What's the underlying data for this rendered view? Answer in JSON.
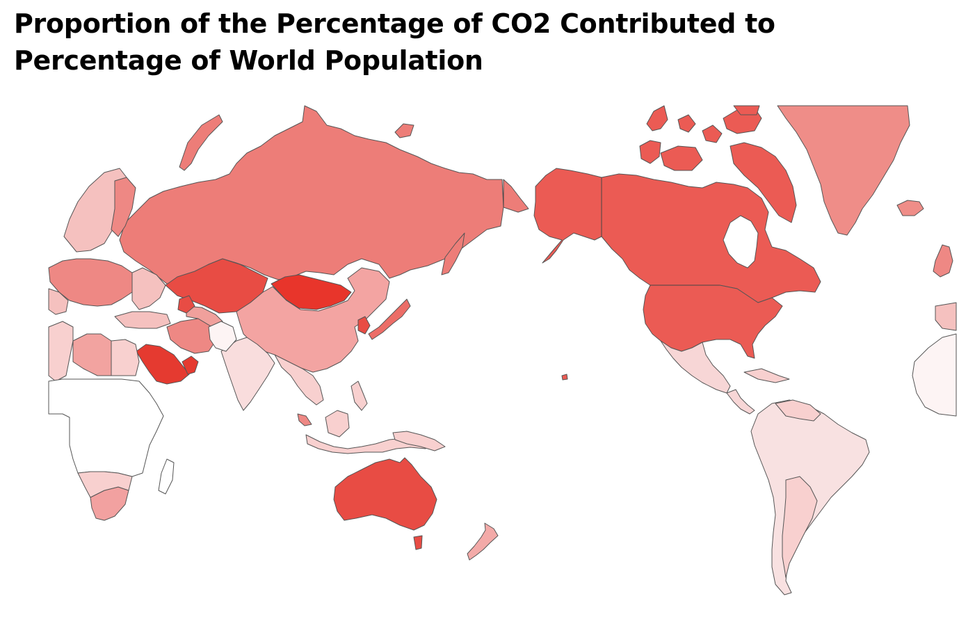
{
  "title": "Proportion of the Percentage of CO2 Contributed to Percentage of World Population",
  "map": {
    "projection": "world map centered on the Pacific",
    "color_scale": {
      "low": "#ffffff",
      "mid": "#f0a0a0",
      "high": "#e8302a"
    },
    "shading_levels": {
      "mongolia": "#e8352b",
      "saudi-arabia-gulf": "#e53a30",
      "kazakhstan": "#e84c44",
      "australia": "#e84c44",
      "usa-canada": "#eb5b54",
      "alaska": "#eb5b54",
      "russia": "#ed7d78",
      "greenland": "#ef8d88",
      "europe-north": "#f5c1bf",
      "china": "#f3a4a2",
      "iran": "#ee8884",
      "libya": "#f2a3a0",
      "south-africa": "#f2a1a0",
      "mexico": "#f7d6d6",
      "south-america": "#f8e1e1",
      "india": "#f9dddd",
      "africa-central": "#ffffff",
      "southeast-asia": "#f8d0cf",
      "new-zealand": "#f3aaa8",
      "japan": "#ec6d67",
      "turkmenistan-uzbekistan": "#f0a09c",
      "west-africa": "#fdf4f4"
    }
  }
}
